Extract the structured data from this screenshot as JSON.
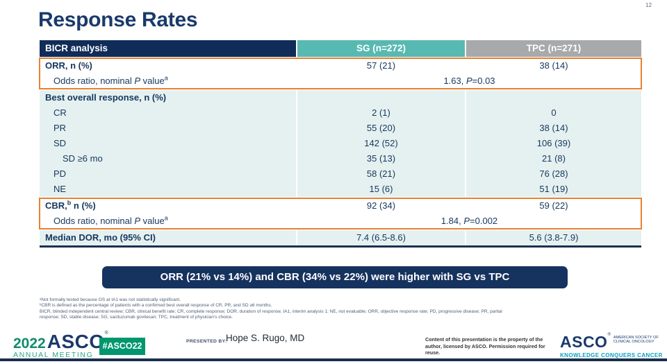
{
  "slide": {
    "number": "12",
    "title": "Response Rates"
  },
  "table": {
    "header": {
      "analysis": "BICR analysis",
      "sg": "SG (n=272)",
      "tpc": "TPC (n=271)"
    },
    "orr": {
      "label": "ORR, n (%)",
      "sg": "57 (21)",
      "tpc": "38 (14)",
      "odds": {
        "pre": "Odds ratio, nominal ",
        "p": "P",
        "post": " value",
        "sup": "a",
        "value_pre": "1.63, ",
        "value_p": "P",
        "value_post": "=0.03"
      }
    },
    "bor": {
      "label": "Best overall response, n (%)",
      "rows": [
        {
          "label": "CR",
          "sg": "2 (1)",
          "tpc": "0"
        },
        {
          "label": "PR",
          "sg": "55 (20)",
          "tpc": "38 (14)"
        },
        {
          "label": "SD",
          "sg": "142 (52)",
          "tpc": "106 (39)"
        },
        {
          "label": "SD ≥6 mo",
          "sg": "35 (13)",
          "tpc": "21 (8)"
        },
        {
          "label": "PD",
          "sg": "58 (21)",
          "tpc": "76 (28)"
        },
        {
          "label": "NE",
          "sg": "15 (6)",
          "tpc": "51 (19)"
        }
      ]
    },
    "cbr": {
      "label_pre": "CBR,",
      "label_sup": "b",
      "label_post": " n (%)",
      "sg": "92 (34)",
      "tpc": "59 (22)",
      "odds": {
        "pre": "Odds ratio, nominal ",
        "p": "P",
        "post": " value",
        "sup": "a",
        "value_pre": "1.84, ",
        "value_p": "P",
        "value_post": "=0.002"
      }
    },
    "dor": {
      "label": "Median DOR, mo (95% CI)",
      "sg": "7.4 (6.5-8.6)",
      "tpc": "5.6 (3.8-7.9)"
    }
  },
  "chart_data": {
    "type": "table",
    "title": "Response Rates",
    "columns": [
      "BICR analysis",
      "SG (n=272)",
      "TPC (n=271)"
    ],
    "rows": [
      [
        "ORR, n (%)",
        "57 (21)",
        "38 (14)"
      ],
      [
        "Odds ratio, nominal P value (a)",
        "1.63, P=0.03",
        ""
      ],
      [
        "Best overall response, n (%)",
        "",
        ""
      ],
      [
        "CR",
        "2 (1)",
        "0"
      ],
      [
        "PR",
        "55 (20)",
        "38 (14)"
      ],
      [
        "SD",
        "142 (52)",
        "106 (39)"
      ],
      [
        "SD ≥6 mo",
        "35 (13)",
        "21 (8)"
      ],
      [
        "PD",
        "58 (21)",
        "76 (28)"
      ],
      [
        "NE",
        "15 (6)",
        "51 (19)"
      ],
      [
        "CBR (b), n (%)",
        "92 (34)",
        "59 (22)"
      ],
      [
        "Odds ratio, nominal P value (a)",
        "1.84, P=0.002",
        ""
      ],
      [
        "Median DOR, mo (95% CI)",
        "7.4 (6.5-8.6)",
        "5.6 (3.8-7.9)"
      ]
    ]
  },
  "banner": {
    "text": "ORR (21% vs 14%) and CBR (34% vs 22%) were higher with SG vs TPC"
  },
  "footnotes": [
    "ᵃNot formally tested because OS at IA1 was not statistically significant.",
    "ᵇCBR is defined as the percentage of patients with a confirmed best overall response of CR, PR, and SD ≥6 months.",
    "BICR, blinded independent central review; CBR, clinical benefit rate; CR, complete response; DOR, duration of response; IA1, interim analysis 1; NE, not evaluable; ORR, objective response rate; PD, progressive disease; PR, partial",
    "response; SD, stable disease; SG, sacituzumab govitecan; TPC, treatment of physician's choice."
  ],
  "footer": {
    "logo_year": "2022",
    "logo_asco": "ASCO",
    "logo_reg": "®",
    "logo_meeting": "ANNUAL MEETING",
    "hashtag": "#ASCO22",
    "presented_label": "PRESENTED BY:",
    "presenter": "Hope S. Rugo, MD",
    "permission": "Content of this presentation is the property of the author, licensed by ASCO. Permission required for reuse.",
    "asco": "ASCO",
    "asco_reg": "®",
    "asco_society_1": "AMERICAN SOCIETY OF",
    "asco_society_2": "CLINICAL ONCOLOGY",
    "asco_tagline": "KNOWLEDGE CONQUERS CANCER"
  },
  "colors": {
    "navy": "#102c59",
    "teal_header": "#58b9b2",
    "gray_header": "#a7a9ab",
    "row_tint": "#e4f1f0",
    "highlight_border": "#e8802f",
    "banner_bg": "#16325f",
    "green_badge": "#00966e",
    "tagline_teal": "#0aa0c4",
    "table_text": "#17365d"
  }
}
